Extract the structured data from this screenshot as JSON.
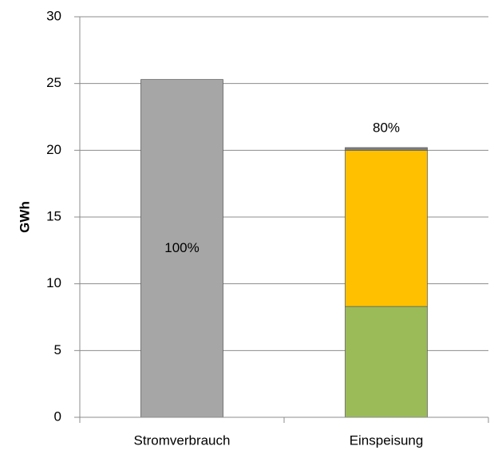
{
  "chart_data": {
    "type": "stacked_bar",
    "y_label": "GWh",
    "categories": [
      "Stromverbrauch",
      "Einspeisung"
    ],
    "series": [
      {
        "color": "#a6a6a6",
        "values": [
          25.3,
          null
        ]
      },
      {
        "color": "#9bbb59",
        "values": [
          null,
          8.3
        ]
      },
      {
        "color": "#ffc000",
        "values": [
          null,
          11.7
        ]
      },
      {
        "color": "#7f7f7f",
        "values": [
          null,
          0.2
        ]
      }
    ],
    "annotations": [
      {
        "category": "Stromverbrauch",
        "text": "100%"
      },
      {
        "category": "Einspeisung",
        "text": "80%"
      }
    ],
    "ylim": [
      0,
      30
    ],
    "yticks": [
      0,
      5,
      10,
      15,
      20,
      25,
      30
    ],
    "grid": true
  }
}
